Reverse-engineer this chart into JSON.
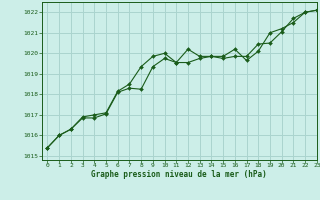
{
  "title": "Graphe pression niveau de la mer (hPa)",
  "bg_color": "#cceee8",
  "grid_color": "#aad4ce",
  "line_color": "#1a5c1a",
  "marker_color": "#1a5c1a",
  "xlim": [
    -0.5,
    23
  ],
  "ylim": [
    1014.8,
    1022.5
  ],
  "xticks": [
    0,
    1,
    2,
    3,
    4,
    5,
    6,
    7,
    8,
    9,
    10,
    11,
    12,
    13,
    14,
    15,
    16,
    17,
    18,
    19,
    20,
    21,
    22,
    23
  ],
  "yticks": [
    1015,
    1016,
    1017,
    1018,
    1019,
    1020,
    1021,
    1022
  ],
  "series1_x": [
    0,
    1,
    2,
    3,
    4,
    5,
    6,
    7,
    8,
    9,
    10,
    11,
    12,
    13,
    14,
    15,
    16,
    17,
    18,
    19,
    20,
    21,
    22,
    23
  ],
  "series1_y": [
    1015.4,
    1016.0,
    1016.3,
    1016.85,
    1016.85,
    1017.05,
    1018.1,
    1018.3,
    1018.25,
    1019.35,
    1019.75,
    1019.55,
    1019.55,
    1019.75,
    1019.85,
    1019.75,
    1019.85,
    1019.85,
    1020.45,
    1020.5,
    1021.05,
    1021.7,
    1022.0,
    1022.1
  ],
  "series2_x": [
    0,
    1,
    2,
    3,
    4,
    5,
    6,
    7,
    8,
    9,
    10,
    11,
    12,
    13,
    14,
    15,
    16,
    17,
    18,
    19,
    20,
    21,
    22,
    23
  ],
  "series2_y": [
    1015.4,
    1016.0,
    1016.3,
    1016.9,
    1017.0,
    1017.1,
    1018.15,
    1018.5,
    1019.35,
    1019.85,
    1020.0,
    1019.55,
    1020.2,
    1019.85,
    1019.85,
    1019.85,
    1020.2,
    1019.65,
    1020.1,
    1021.0,
    1021.2,
    1021.5,
    1022.0,
    1022.1
  ],
  "xlabel_fontsize": 5.5,
  "tick_fontsize": 4.5
}
